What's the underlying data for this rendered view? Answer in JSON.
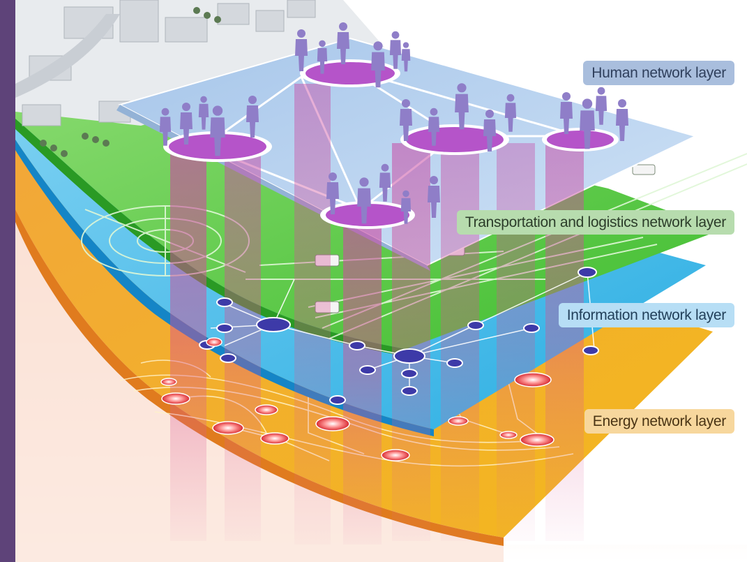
{
  "layers": {
    "human": {
      "label": "Human network layer",
      "color": "#a9c8ec"
    },
    "transport": {
      "label": "Transportation and logistics network layer",
      "color": "#5fc94a"
    },
    "information": {
      "label": "Information network layer",
      "color": "#38b6e6"
    },
    "energy": {
      "label": "Energy network layer",
      "color": "#f0a418"
    }
  },
  "colors": {
    "frame_border": "#5e4379",
    "hub": "#b554c9",
    "person": "#8f7ec8",
    "info_node": "#3d3aa8",
    "energy_node": "#e23a3a"
  }
}
